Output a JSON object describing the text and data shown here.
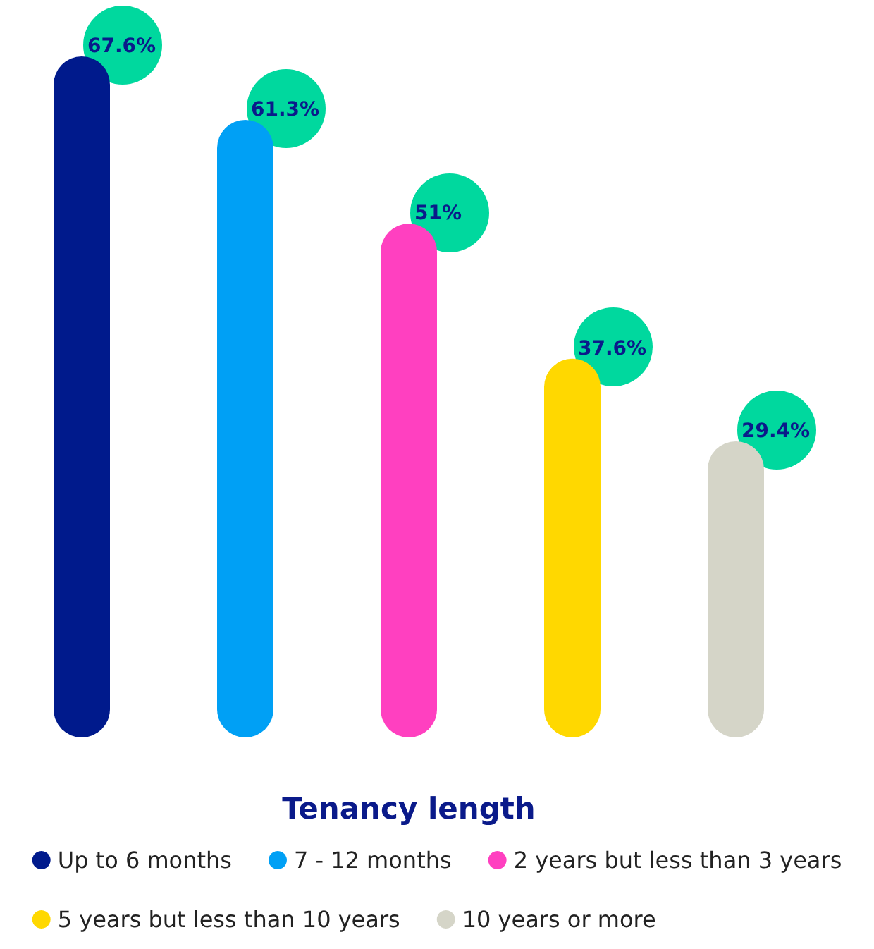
{
  "chart_data": {
    "type": "bar",
    "xlabel": "Tenancy length",
    "categories": [
      null,
      null,
      null,
      null,
      null
    ],
    "stacked": true,
    "tick_labels": false,
    "grid": false,
    "legend": "bottom",
    "ylim": [
      0,
      67.6
    ],
    "series": [
      {
        "name": "Up to 6 months",
        "color": "#001a8c",
        "values": [
          67.6,
          null,
          null,
          null,
          null
        ],
        "value_labels": [
          "67.6%",
          null,
          null,
          null,
          null
        ]
      },
      {
        "name": "7 - 12 months",
        "color": "#00a0f5",
        "values": [
          null,
          61.3,
          null,
          null,
          null
        ],
        "value_labels": [
          null,
          "61.3%",
          null,
          null,
          null
        ]
      },
      {
        "name": "2 years but less than 3 years",
        "color": "#ff40c0",
        "values": [
          null,
          null,
          51,
          null,
          null
        ],
        "value_labels": [
          null,
          null,
          "51%",
          null,
          null
        ]
      },
      {
        "name": "5 years but less than 10 years",
        "color": "#ffd800",
        "values": [
          null,
          null,
          null,
          37.6,
          null
        ],
        "value_labels": [
          null,
          null,
          null,
          "37.6%",
          null
        ]
      },
      {
        "name": "10 years or more",
        "color": "#d5d5c8",
        "values": [
          null,
          null,
          null,
          null,
          29.4
        ],
        "value_labels": [
          null,
          null,
          null,
          null,
          "29.4%"
        ]
      }
    ]
  }
}
